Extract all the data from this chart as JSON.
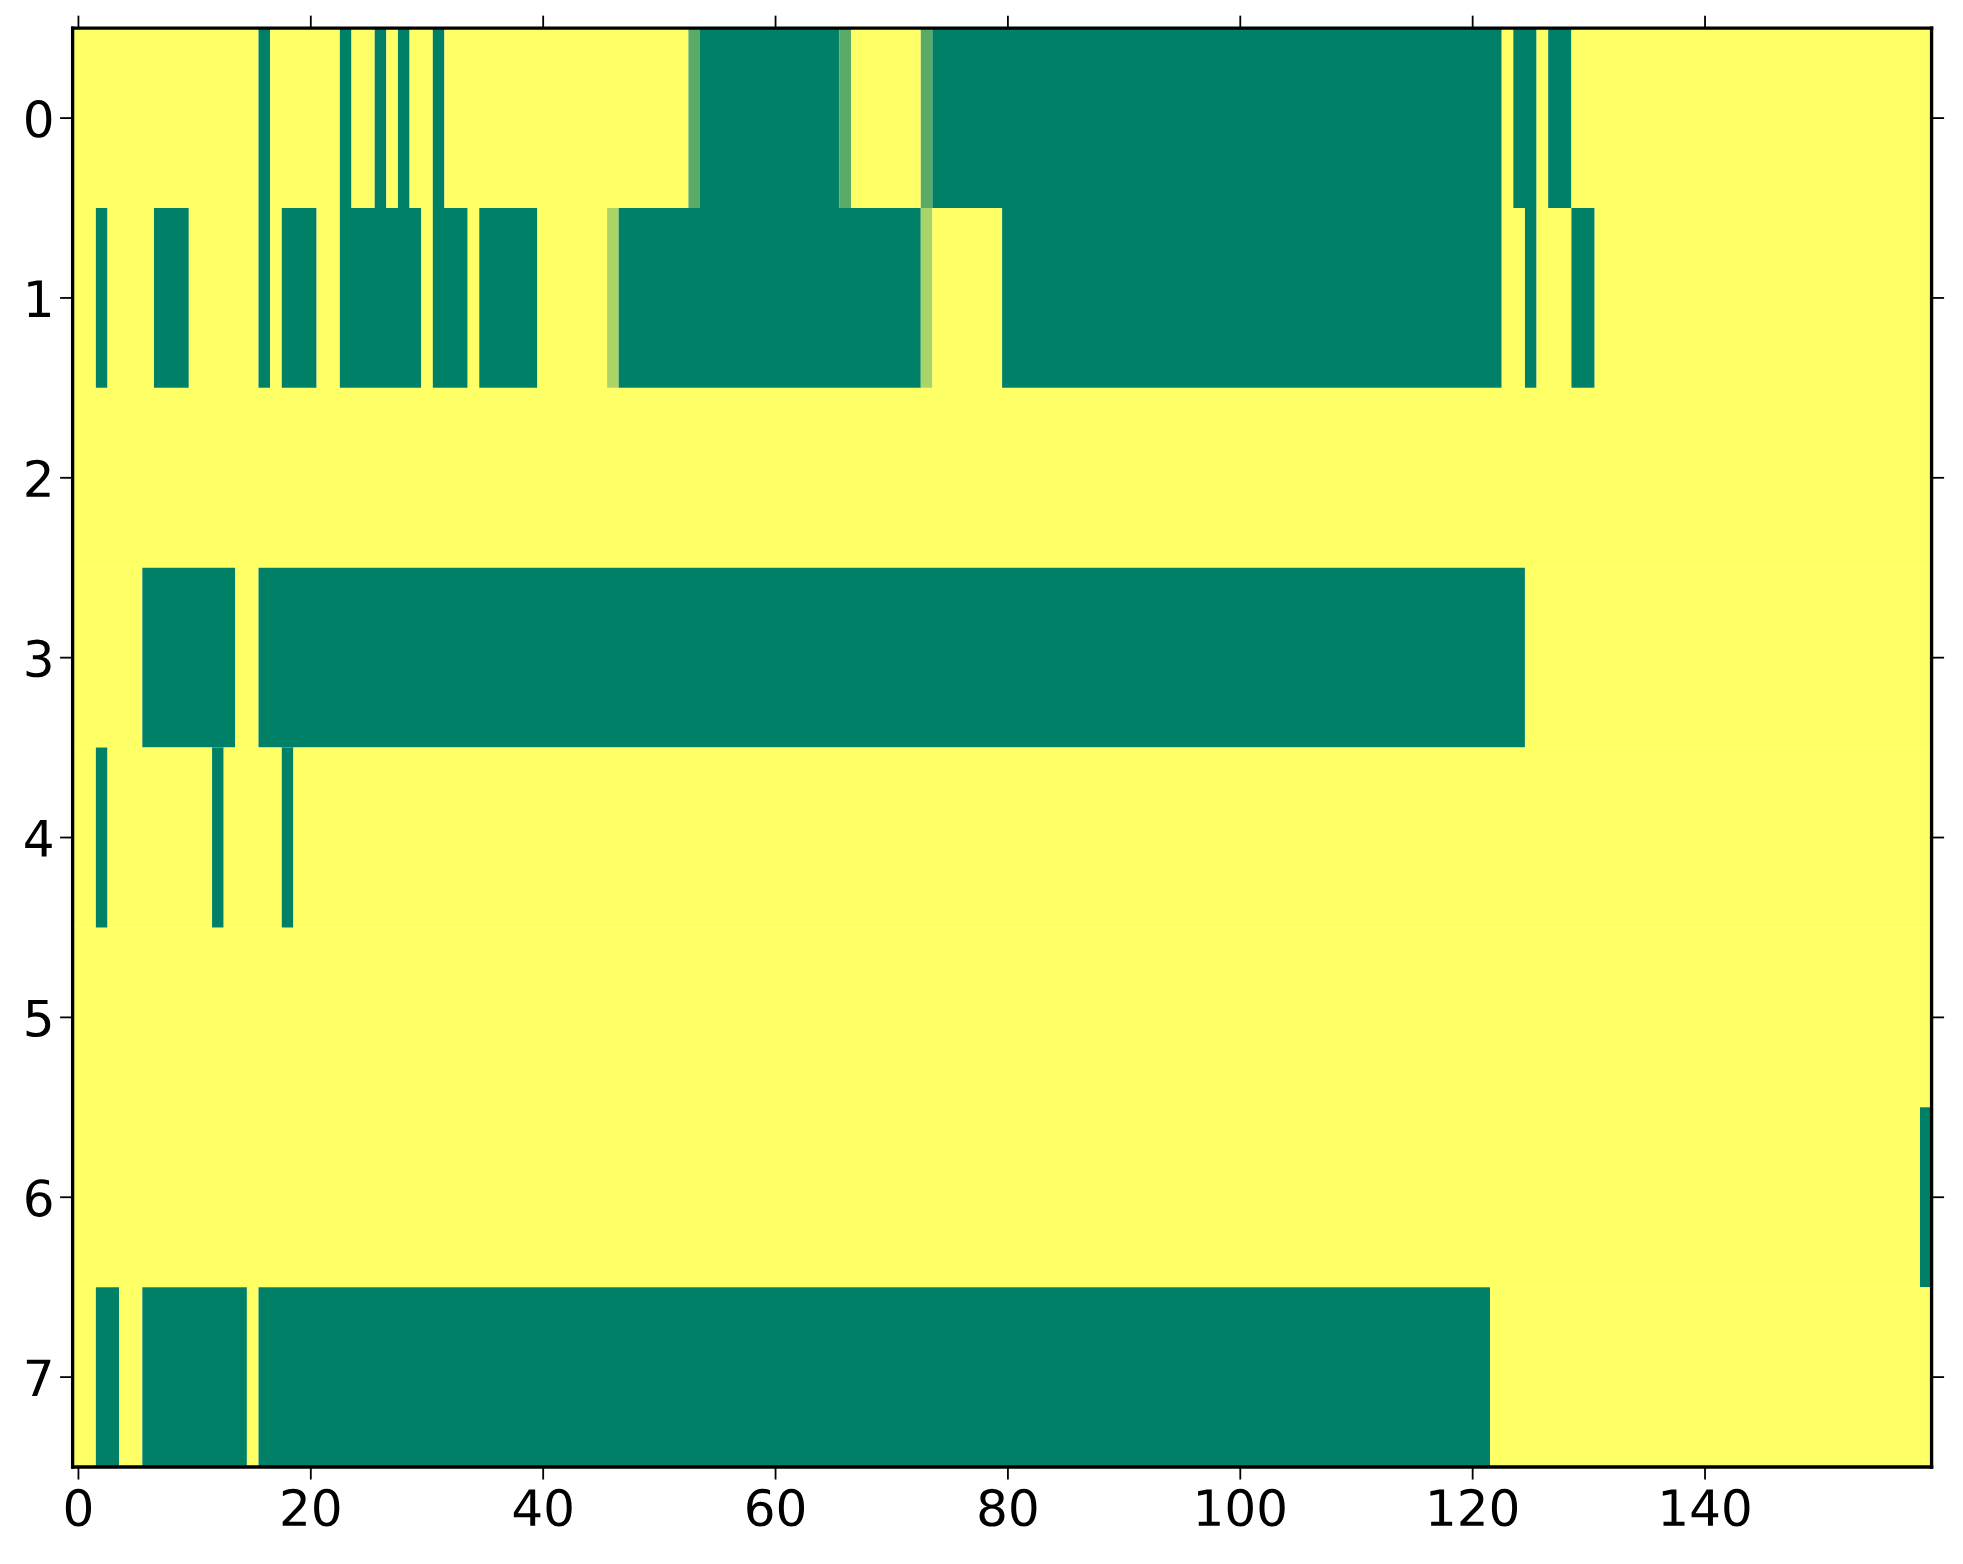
{
  "chart_data": {
    "type": "bar",
    "orientation": "horizontal",
    "categories": [
      "0",
      "1",
      "2",
      "3",
      "4",
      "5",
      "6",
      "7"
    ],
    "xlim": [
      -0.5,
      159.5
    ],
    "xticks": [
      0,
      20,
      40,
      60,
      80,
      100,
      120,
      140
    ],
    "series": [
      {
        "base": [
          -0.5,
          -0.5,
          -0.5,
          -0.5,
          -0.5,
          -0.5,
          -0.5,
          -0.5
        ],
        "values": [
          16,
          2,
          160,
          6,
          2,
          160,
          159,
          2
        ],
        "colors": [
          "#ffff66",
          "#ffff66",
          "#ffff66",
          "#ffff66",
          "#ffff66",
          "#ffff66",
          "#ffff66",
          "#ffff66"
        ]
      },
      {
        "base": [
          15.5,
          1.5,
          null,
          5.5,
          1.5,
          null,
          158.5,
          1.5
        ],
        "values": [
          1,
          1,
          null,
          8,
          1,
          null,
          1,
          2
        ],
        "colors": [
          "#008066",
          "#008066",
          null,
          "#008066",
          "#008066",
          null,
          "#008066",
          "#008066"
        ]
      },
      {
        "base": [
          16.5,
          2.5,
          null,
          13.5,
          2.5,
          null,
          null,
          3.5
        ],
        "values": [
          6,
          4,
          null,
          2,
          9,
          null,
          null,
          2
        ],
        "colors": [
          "#ffff66",
          "#ffff66",
          null,
          "#ffff66",
          "#ffff66",
          null,
          null,
          "#ffff66"
        ]
      },
      {
        "base": [
          22.5,
          6.5,
          null,
          15.5,
          11.5,
          null,
          null,
          5.5
        ],
        "values": [
          1,
          3,
          null,
          109,
          1,
          null,
          null,
          9
        ],
        "colors": [
          "#008066",
          "#008066",
          null,
          "#008066",
          "#008066",
          null,
          null,
          "#008066"
        ]
      },
      {
        "base": [
          23.5,
          9.5,
          null,
          124.5,
          12.5,
          null,
          null,
          14.5
        ],
        "values": [
          2,
          6,
          null,
          35,
          5,
          null,
          null,
          1
        ],
        "colors": [
          "#ffff66",
          "#ffff66",
          null,
          "#ffff66",
          "#ffff66",
          null,
          null,
          "#ffff66"
        ]
      },
      {
        "base": [
          25.5,
          15.5,
          null,
          null,
          17.5,
          null,
          null,
          15.5
        ],
        "values": [
          1,
          1,
          null,
          null,
          1,
          null,
          null,
          106
        ],
        "colors": [
          "#008066",
          "#008066",
          null,
          null,
          "#008066",
          null,
          null,
          "#008066"
        ]
      },
      {
        "base": [
          26.5,
          16.5,
          null,
          null,
          18.5,
          null,
          null,
          121.5
        ],
        "values": [
          1,
          1,
          null,
          null,
          141,
          null,
          null,
          38
        ],
        "colors": [
          "#ffff66",
          "#ffff66",
          null,
          null,
          "#ffff66",
          null,
          null,
          "#ffff66"
        ]
      },
      {
        "base": [
          27.5,
          17.5,
          null,
          null,
          null,
          null,
          null,
          null
        ],
        "values": [
          1,
          3,
          null,
          null,
          null,
          null,
          null,
          null
        ],
        "colors": [
          "#008066",
          "#008066",
          null,
          null,
          null,
          null,
          null,
          null
        ]
      },
      {
        "base": [
          28.5,
          20.5,
          null,
          null,
          null,
          null,
          null,
          null
        ],
        "values": [
          2,
          2,
          null,
          null,
          null,
          null,
          null,
          null
        ],
        "colors": [
          "#ffff66",
          "#ffff66",
          null,
          null,
          null,
          null,
          null,
          null
        ]
      },
      {
        "base": [
          30.5,
          22.5,
          null,
          null,
          null,
          null,
          null,
          null
        ],
        "values": [
          1,
          7,
          null,
          null,
          null,
          null,
          null,
          null
        ],
        "colors": [
          "#008066",
          "#008066",
          null,
          null,
          null,
          null,
          null,
          null
        ]
      },
      {
        "base": [
          31.5,
          29.5,
          null,
          null,
          null,
          null,
          null,
          null
        ],
        "values": [
          21,
          1,
          null,
          null,
          null,
          null,
          null,
          null
        ],
        "colors": [
          "#ffff66",
          "#ffff66",
          null,
          null,
          null,
          null,
          null,
          null
        ]
      },
      {
        "base": [
          52.5,
          30.5,
          null,
          null,
          null,
          null,
          null,
          null
        ],
        "values": [
          1,
          3,
          null,
          null,
          null,
          null,
          null,
          null
        ],
        "colors": [
          "#5aab66",
          "#008066",
          null,
          null,
          null,
          null,
          null,
          null
        ]
      },
      {
        "base": [
          53.5,
          33.5,
          null,
          null,
          null,
          null,
          null,
          null
        ],
        "values": [
          12,
          1,
          null,
          null,
          null,
          null,
          null,
          null
        ],
        "colors": [
          "#008066",
          "#ffff66",
          null,
          null,
          null,
          null,
          null,
          null
        ]
      },
      {
        "base": [
          65.5,
          34.5,
          null,
          null,
          null,
          null,
          null,
          null
        ],
        "values": [
          1,
          5,
          null,
          null,
          null,
          null,
          null,
          null
        ],
        "colors": [
          "#5aab66",
          "#008066",
          null,
          null,
          null,
          null,
          null,
          null
        ]
      },
      {
        "base": [
          66.5,
          39.5,
          null,
          null,
          null,
          null,
          null,
          null
        ],
        "values": [
          6,
          6,
          null,
          null,
          null,
          null,
          null,
          null
        ],
        "colors": [
          "#ffff66",
          "#ffff66",
          null,
          null,
          null,
          null,
          null,
          null
        ]
      },
      {
        "base": [
          72.5,
          45.5,
          null,
          null,
          null,
          null,
          null,
          null
        ],
        "values": [
          1,
          1,
          null,
          null,
          null,
          null,
          null,
          null
        ],
        "colors": [
          "#5aab66",
          "#aad566",
          null,
          null,
          null,
          null,
          null,
          null
        ]
      },
      {
        "base": [
          73.5,
          46.5,
          null,
          null,
          null,
          null,
          null,
          null
        ],
        "values": [
          49,
          26,
          null,
          null,
          null,
          null,
          null,
          null
        ],
        "colors": [
          "#008066",
          "#008066",
          null,
          null,
          null,
          null,
          null,
          null
        ]
      },
      {
        "base": [
          122.5,
          72.5,
          null,
          null,
          null,
          null,
          null,
          null
        ],
        "values": [
          1,
          1,
          null,
          null,
          null,
          null,
          null,
          null
        ],
        "colors": [
          "#ffff66",
          "#aad566",
          null,
          null,
          null,
          null,
          null,
          null
        ]
      },
      {
        "base": [
          123.5,
          73.5,
          null,
          null,
          null,
          null,
          null,
          null
        ],
        "values": [
          2,
          6,
          null,
          null,
          null,
          null,
          null,
          null
        ],
        "colors": [
          "#008066",
          "#ffff66",
          null,
          null,
          null,
          null,
          null,
          null
        ]
      },
      {
        "base": [
          125.5,
          79.5,
          null,
          null,
          null,
          null,
          null,
          null
        ],
        "values": [
          1,
          43,
          null,
          null,
          null,
          null,
          null,
          null
        ],
        "colors": [
          "#ffff66",
          "#008066",
          null,
          null,
          null,
          null,
          null,
          null
        ]
      },
      {
        "base": [
          126.5,
          122.5,
          null,
          null,
          null,
          null,
          null,
          null
        ],
        "values": [
          2,
          2,
          null,
          null,
          null,
          null,
          null,
          null
        ],
        "colors": [
          "#008066",
          "#ffff66",
          null,
          null,
          null,
          null,
          null,
          null
        ]
      },
      {
        "base": [
          128.5,
          124.5,
          null,
          null,
          null,
          null,
          null,
          null
        ],
        "values": [
          31,
          1,
          null,
          null,
          null,
          null,
          null,
          null
        ],
        "colors": [
          "#ffff66",
          "#008066",
          null,
          null,
          null,
          null,
          null,
          null
        ]
      },
      {
        "base": [
          null,
          125.5,
          null,
          null,
          null,
          null,
          null,
          null
        ],
        "values": [
          null,
          3,
          null,
          null,
          null,
          null,
          null,
          null
        ],
        "colors": [
          null,
          "#ffff66",
          null,
          null,
          null,
          null,
          null,
          null
        ]
      },
      {
        "base": [
          null,
          128.5,
          null,
          null,
          null,
          null,
          null,
          null
        ],
        "values": [
          null,
          2,
          null,
          null,
          null,
          null,
          null,
          null
        ],
        "colors": [
          null,
          "#008066",
          null,
          null,
          null,
          null,
          null,
          null
        ]
      },
      {
        "base": [
          null,
          130.5,
          null,
          null,
          null,
          null,
          null,
          null
        ],
        "values": [
          null,
          29,
          null,
          null,
          null,
          null,
          null,
          null
        ],
        "colors": [
          null,
          "#ffff66",
          null,
          null,
          null,
          null,
          null,
          null
        ]
      }
    ]
  }
}
